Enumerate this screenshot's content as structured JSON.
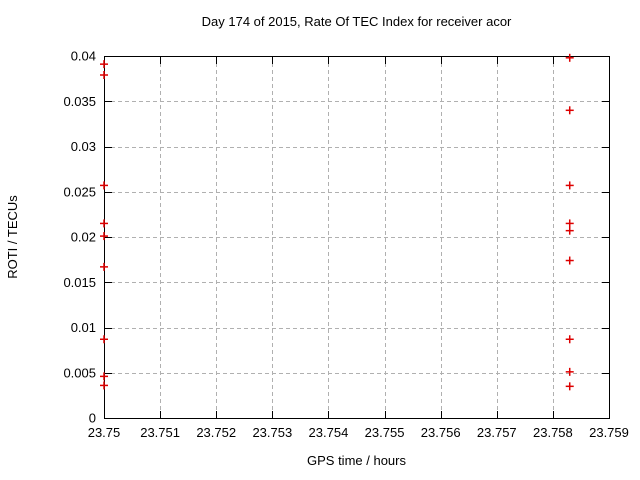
{
  "chart_data": {
    "type": "scatter",
    "title": "Day 174 of 2015, Rate Of TEC Index for receiver acor",
    "xlabel": "GPS time / hours",
    "ylabel": "ROTI / TECUs",
    "xlim": [
      23.75,
      23.759
    ],
    "ylim": [
      0,
      0.04
    ],
    "x_ticks": [
      23.75,
      23.751,
      23.752,
      23.753,
      23.754,
      23.755,
      23.756,
      23.757,
      23.758,
      23.759
    ],
    "x_tick_labels": [
      "23.75",
      "23.751",
      "23.752",
      "23.753",
      "23.754",
      "23.755",
      "23.756",
      "23.757",
      "23.758",
      "23.759"
    ],
    "y_ticks": [
      0,
      0.005,
      0.01,
      0.015,
      0.02,
      0.025,
      0.03,
      0.035,
      0.04
    ],
    "y_tick_labels": [
      "0",
      "0.005",
      "0.01",
      "0.015",
      "0.02",
      "0.025",
      "0.03",
      "0.035",
      "0.04"
    ],
    "grid": true,
    "grid_style": "dashed",
    "legend_position": "none",
    "grid_color": "#b0b0b0",
    "axis_color": "#000000",
    "background_color": "#ffffff",
    "series": [
      {
        "marker": "plus",
        "color": "#dd0000",
        "points": [
          [
            23.75,
            0.0391
          ],
          [
            23.75,
            0.0379
          ],
          [
            23.75,
            0.0257
          ],
          [
            23.75,
            0.0215
          ],
          [
            23.75,
            0.0201
          ],
          [
            23.75,
            0.0167
          ],
          [
            23.75,
            0.0087
          ],
          [
            23.75,
            0.0046
          ],
          [
            23.75,
            0.0036
          ],
          [
            23.7583,
            0.0398
          ],
          [
            23.7583,
            0.034
          ],
          [
            23.7583,
            0.0257
          ],
          [
            23.7583,
            0.0215
          ],
          [
            23.7583,
            0.0207
          ],
          [
            23.7583,
            0.0174
          ],
          [
            23.7583,
            0.0087
          ],
          [
            23.7583,
            0.0051
          ],
          [
            23.7583,
            0.0035
          ]
        ]
      }
    ]
  }
}
